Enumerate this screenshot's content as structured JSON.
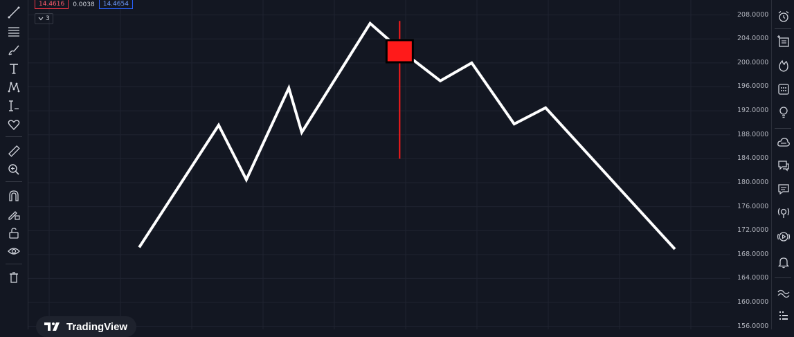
{
  "legend": {
    "value_red": "14.4616",
    "value_mid": "0.0038",
    "value_blue": "14.4654",
    "collapse_count": "3"
  },
  "branding": {
    "logo_text": "TradingView"
  },
  "colors": {
    "background": "#131722",
    "line": "#ffffff",
    "marker": "#ff1a1a",
    "legend_red": "#f23645",
    "legend_blue": "#2962ff"
  },
  "chart_data": {
    "type": "line",
    "ylim": [
      155.5,
      210.5
    ],
    "yticks": [
      {
        "value": 208,
        "label": "208.0000"
      },
      {
        "value": 204,
        "label": "204.0000"
      },
      {
        "value": 200,
        "label": "200.0000"
      },
      {
        "value": 196,
        "label": "196.0000"
      },
      {
        "value": 192,
        "label": "192.0000"
      },
      {
        "value": 188,
        "label": "188.0000"
      },
      {
        "value": 184,
        "label": "184.0000"
      },
      {
        "value": 180,
        "label": "180.0000"
      },
      {
        "value": 176,
        "label": "176.0000"
      },
      {
        "value": 172,
        "label": "172.0000"
      },
      {
        "value": 168,
        "label": "168.0000"
      },
      {
        "value": 164,
        "label": "164.0000"
      },
      {
        "value": 160,
        "label": "160.0000"
      },
      {
        "value": 156,
        "label": "156.0000"
      }
    ],
    "series": [
      {
        "x": [
          0,
          21.5,
          29,
          40.5,
          44,
          62.5,
          71,
          81.5,
          90,
          101.5,
          110,
          145
        ],
        "y": [
          169.2,
          189.6,
          180.5,
          195.8,
          188.4,
          206.6,
          202.0,
          197.0,
          200.0,
          189.8,
          192.5,
          168.9
        ]
      }
    ],
    "xlim": [
      -30,
      160
    ],
    "marker": {
      "x": 70.5,
      "high": 207.0,
      "low": 184.0,
      "open": 203.8,
      "close": 200.1
    }
  }
}
